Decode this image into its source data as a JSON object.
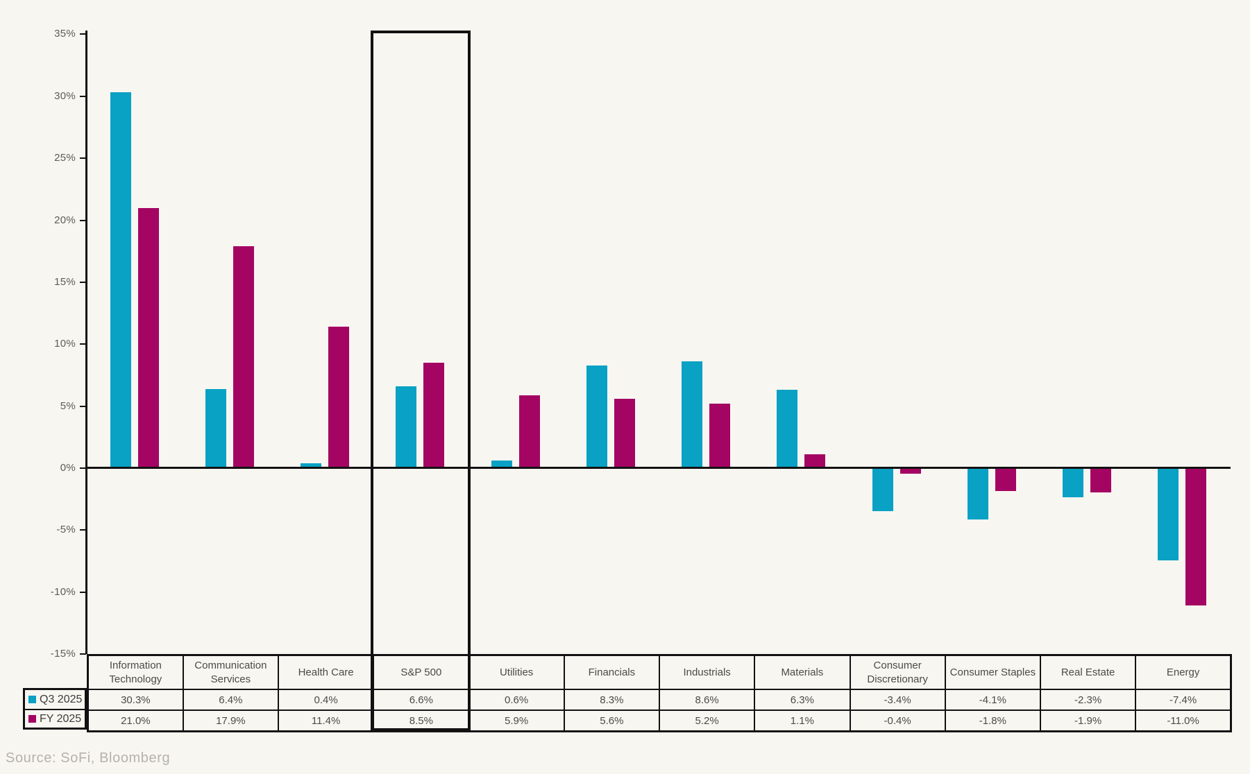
{
  "chart_data": {
    "type": "bar",
    "title": "",
    "categories": [
      "Information Technology",
      "Communication Services",
      "Health Care",
      "S&P 500",
      "Utilities",
      "Financials",
      "Industrials",
      "Materials",
      "Consumer Discretionary",
      "Consumer Staples",
      "Real Estate",
      "Energy"
    ],
    "series": [
      {
        "name": "Q3 2025",
        "color": "#09A1C4",
        "values": [
          30.3,
          6.4,
          0.4,
          6.6,
          0.6,
          8.3,
          8.6,
          6.3,
          -3.4,
          -4.1,
          -2.3,
          -7.4
        ]
      },
      {
        "name": "FY 2025",
        "color": "#A40563",
        "values": [
          21.0,
          17.9,
          11.4,
          8.5,
          5.9,
          5.6,
          5.2,
          1.1,
          -0.4,
          -1.8,
          -1.9,
          -11.0
        ]
      }
    ],
    "ylim": [
      -15,
      35
    ],
    "ytick_step": 5,
    "ytick_labels": [
      "35%",
      "30%",
      "25%",
      "20%",
      "15%",
      "10%",
      "5%",
      "0%",
      "-5%",
      "-10%",
      "-15%"
    ],
    "value_format": "one-decimal-percent",
    "grid": false,
    "legend_position": "table-left",
    "highlighted_category": "S&P 500",
    "table_legend_labels": [
      "Q3 2025",
      "FY 2025"
    ]
  },
  "source_note": "Source: SoFi, Bloomberg",
  "colors": {
    "background": "#F8F6F1",
    "q3_bar": "#09A1C4",
    "fy_bar": "#A40563",
    "axis_and_borders": "#121212",
    "tick_text": "#5d5b57",
    "table_text": "#4c4a47",
    "source_text": "#b5b2ab"
  }
}
